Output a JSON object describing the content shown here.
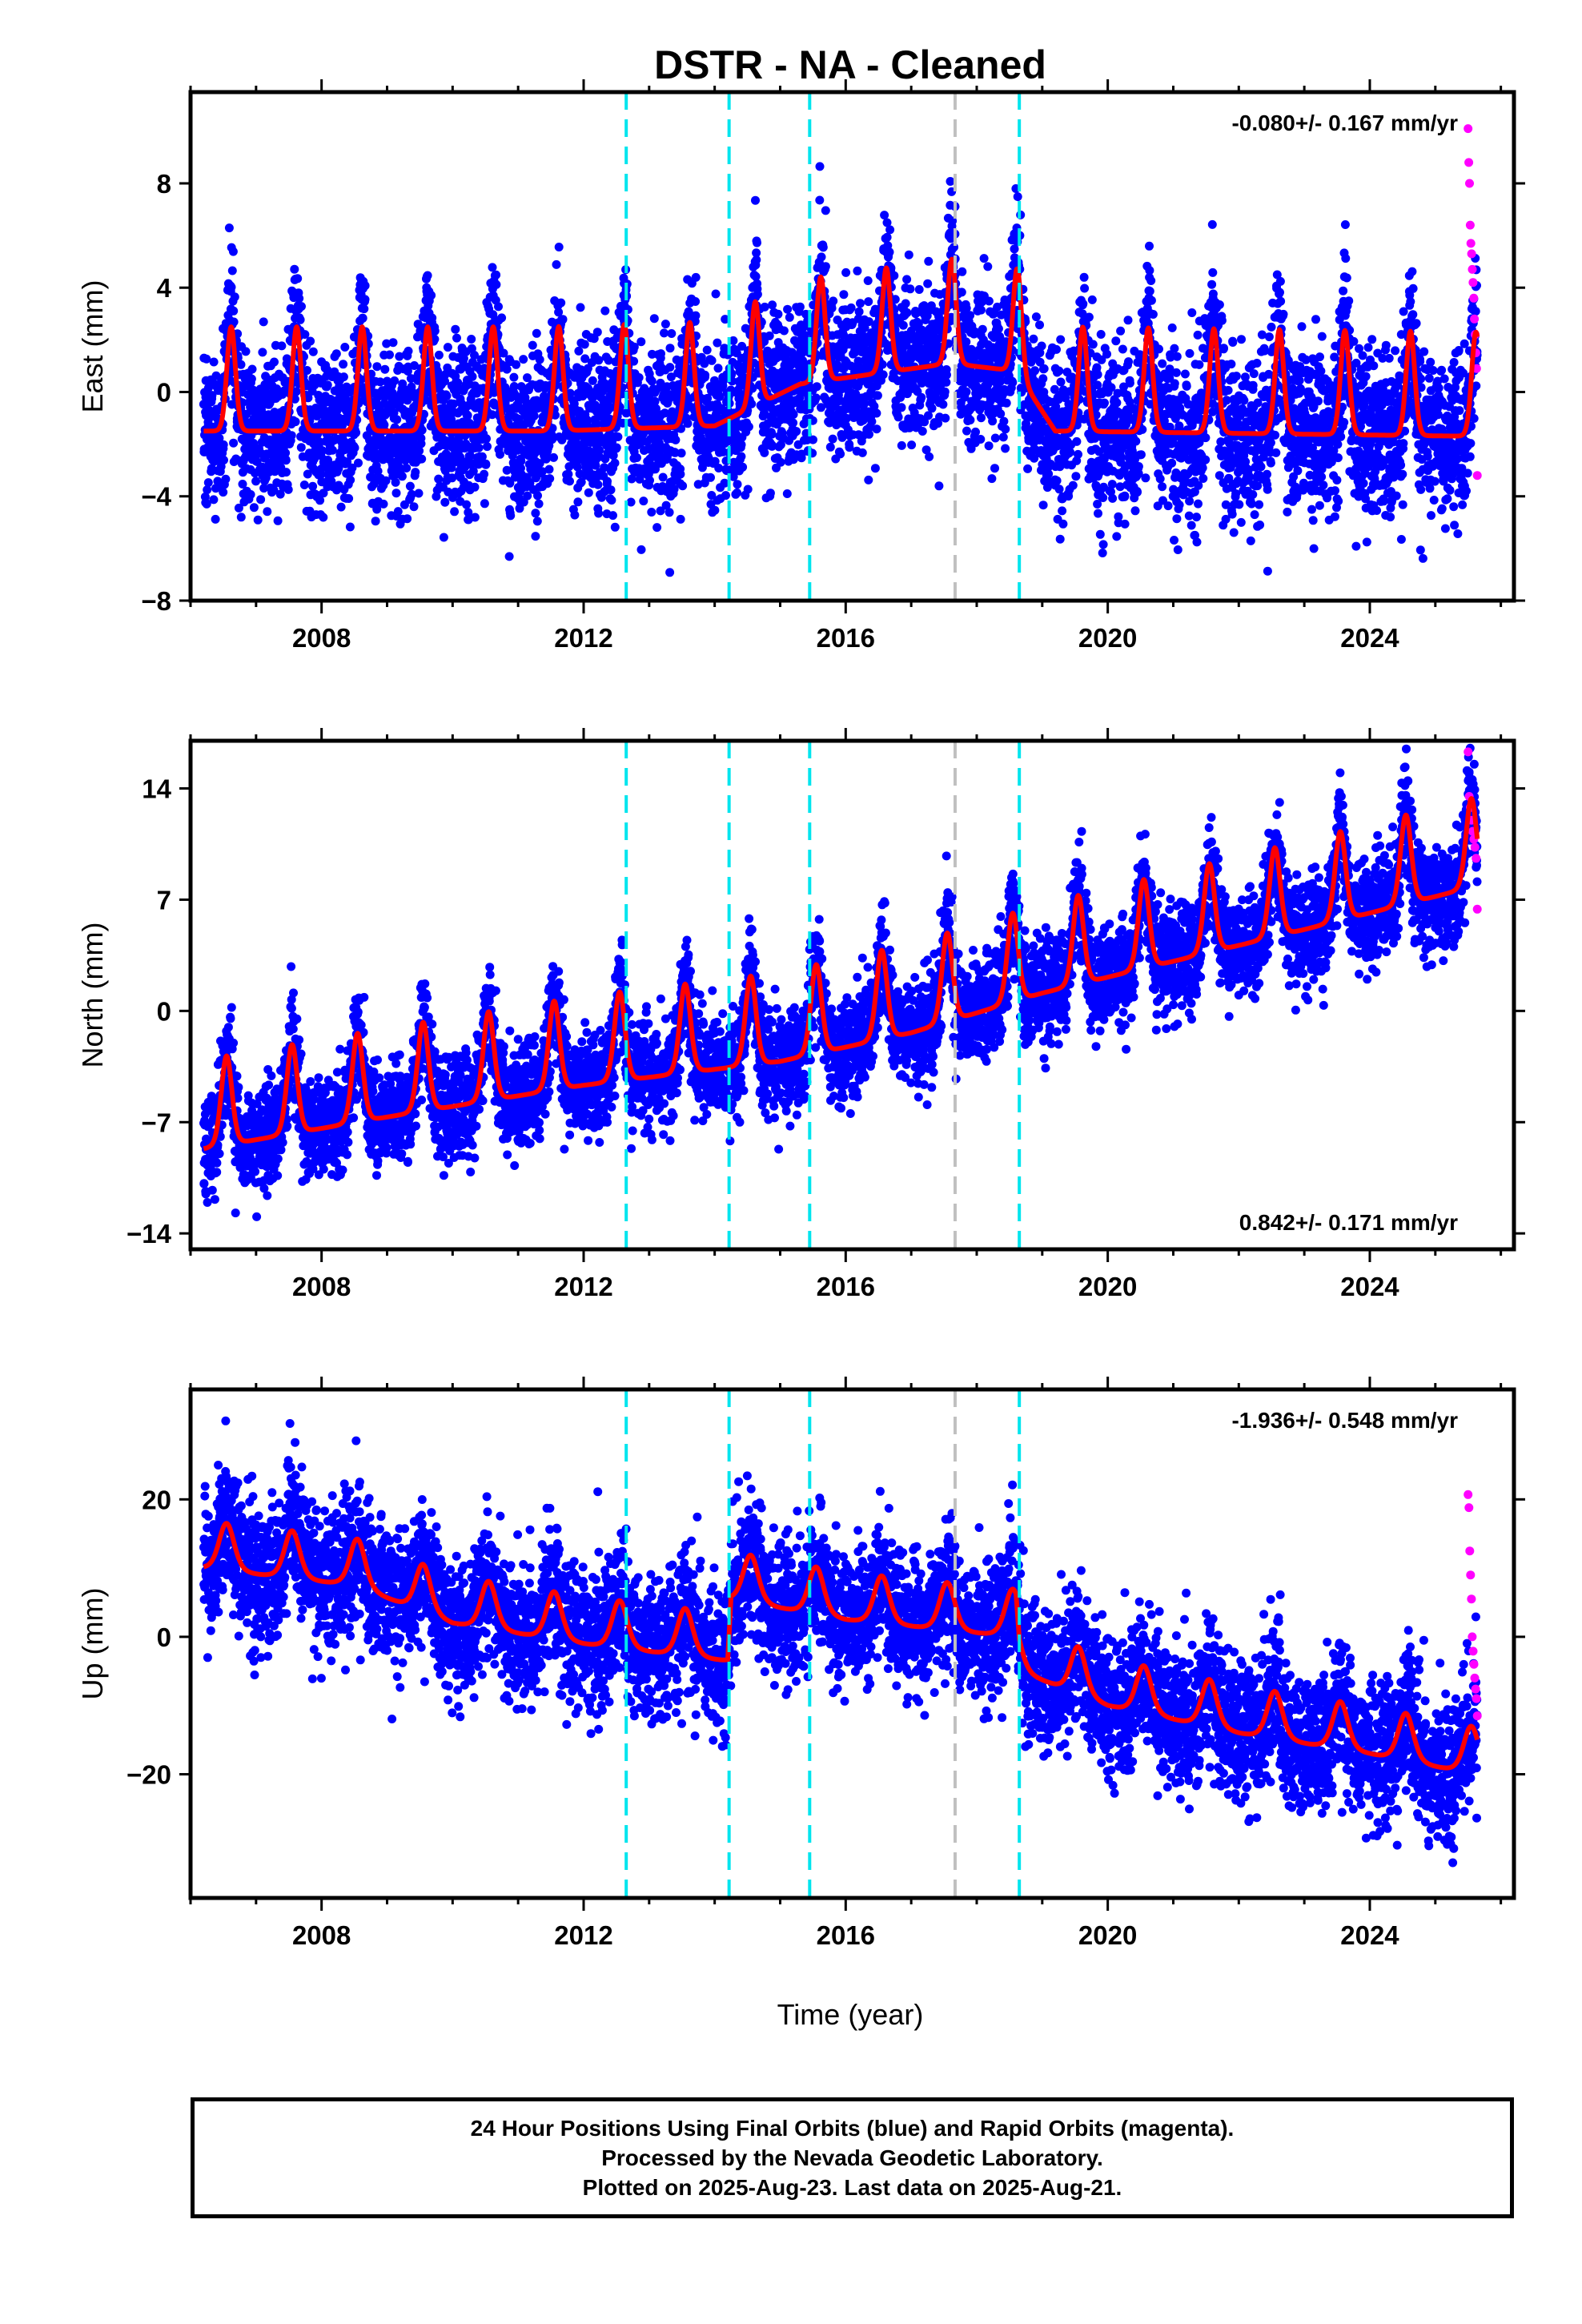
{
  "title": "DSTR  - NA - Cleaned",
  "xlabel": "Time (year)",
  "caption": {
    "line1": "24 Hour Positions Using Final Orbits (blue) and Rapid Orbits (magenta).",
    "line2": "Processed by the Nevada Geodetic Laboratory.",
    "line3": "Plotted on 2025-Aug-23. Last data on 2025-Aug-21."
  },
  "colors": {
    "final_orbits": "#0000ff",
    "rapid_orbits": "#ff00ff",
    "model_fit": "#ff0000",
    "offset_equipment": "#00e5ee",
    "offset_other": "#c0c0c0"
  },
  "chart_data": [
    {
      "type": "scatter",
      "component": "east",
      "ylabel": "East (mm)",
      "rate": "-0.080+/- 0.167 mm/yr",
      "rate_position": "top-right",
      "xlim": [
        2006.0,
        2026.2
      ],
      "ylim": [
        -8,
        11.5
      ],
      "xticks": [
        2008,
        2012,
        2016,
        2020,
        2024
      ],
      "yticks": [
        -8,
        -4,
        0,
        4,
        8
      ],
      "data_span": [
        2006.2,
        2025.64
      ],
      "offsets_equipment": [
        2012.65,
        2014.22,
        2015.45,
        2018.65
      ],
      "offsets_other": [
        2017.67
      ],
      "model": {
        "annual_amplitude": 2.0,
        "peak_phase": 0.62,
        "sharpness": 6,
        "trend": [
          [
            2006.2,
            -0.3
          ],
          [
            2011.5,
            -0.3
          ],
          [
            2014.0,
            -0.1
          ],
          [
            2015.3,
            1.5
          ],
          [
            2017.6,
            2.3
          ],
          [
            2018.6,
            2.0
          ],
          [
            2019.2,
            -0.3
          ],
          [
            2025.6,
            -0.5
          ]
        ]
      },
      "final_orbits": {
        "scatter_sd": 1.5,
        "approx_points": 6900
      },
      "rapid_orbits": {
        "x_start": 2025.5,
        "x_end": 2025.64,
        "values": [
          10.1,
          8.8,
          8.0,
          6.4,
          5.7,
          5.3,
          4.7,
          4.2,
          3.6,
          2.8,
          2.2,
          1.5,
          0.9,
          -3.2
        ]
      }
    },
    {
      "type": "scatter",
      "component": "north",
      "ylabel": "North (mm)",
      "rate": "0.842+/- 0.171 mm/yr",
      "rate_position": "bottom-right",
      "xlim": [
        2006.0,
        2026.2
      ],
      "ylim": [
        -15,
        17
      ],
      "xticks": [
        2008,
        2012,
        2016,
        2020,
        2024
      ],
      "yticks": [
        -14,
        -7,
        0,
        7,
        14
      ],
      "data_span": [
        2006.2,
        2025.64
      ],
      "offsets_equipment": [
        2012.65,
        2014.22,
        2015.45,
        2018.65
      ],
      "offsets_other": [
        2017.67
      ],
      "model": {
        "annual_amplitude": 2.8,
        "peak_phase": 0.55,
        "sharpness": 4,
        "trend": [
          [
            2006.2,
            -7.0
          ],
          [
            2009.0,
            -5.0
          ],
          [
            2012.0,
            -3.0
          ],
          [
            2015.0,
            -1.5
          ],
          [
            2017.0,
            0.3
          ],
          [
            2019.0,
            2.8
          ],
          [
            2021.0,
            4.8
          ],
          [
            2023.0,
            6.8
          ],
          [
            2025.6,
            9.5
          ]
        ]
      },
      "final_orbits": {
        "scatter_sd": 1.6,
        "approx_points": 6900
      },
      "rapid_orbits": {
        "x_start": 2025.5,
        "x_end": 2025.64,
        "values": [
          16.3,
          13.5,
          12.8,
          12.0,
          11.3,
          10.8,
          10.3,
          9.6,
          6.4
        ]
      }
    },
    {
      "type": "scatter",
      "component": "up",
      "ylabel": "Up (mm)",
      "rate": "-1.936+/- 0.548 mm/yr",
      "rate_position": "top-right",
      "xlim": [
        2006.0,
        2026.2
      ],
      "ylim": [
        -38,
        36
      ],
      "xticks": [
        2008,
        2012,
        2016,
        2020,
        2024
      ],
      "yticks": [
        -20,
        0,
        20
      ],
      "data_span": [
        2006.2,
        2025.64
      ],
      "offsets_equipment": [
        2012.65,
        2014.22,
        2015.45,
        2018.65
      ],
      "offsets_other": [
        2017.67
      ],
      "model": {
        "annual_amplitude": 3.5,
        "peak_phase": 0.55,
        "sharpness": 2,
        "trend": [
          [
            2006.2,
            12.0
          ],
          [
            2008.5,
            9.5
          ],
          [
            2010.0,
            4.0
          ],
          [
            2012.0,
            1.0
          ],
          [
            2014.2,
            -1.5
          ],
          [
            2014.25,
            7.5
          ],
          [
            2016.0,
            4.5
          ],
          [
            2018.6,
            2.0
          ],
          [
            2018.65,
            -3.0
          ],
          [
            2020.0,
            -8.0
          ],
          [
            2022.0,
            -12.0
          ],
          [
            2024.0,
            -15.0
          ],
          [
            2025.6,
            -18.0
          ]
        ]
      },
      "final_orbits": {
        "scatter_sd": 5.0,
        "approx_points": 6900
      },
      "rapid_orbits": {
        "x_start": 2025.5,
        "x_end": 2025.64,
        "values": [
          20.7,
          18.8,
          12.5,
          9.0,
          5.5,
          0.0,
          -2.1,
          -4.0,
          -6.0,
          -7.6,
          -9.0,
          -11.5
        ]
      }
    }
  ]
}
